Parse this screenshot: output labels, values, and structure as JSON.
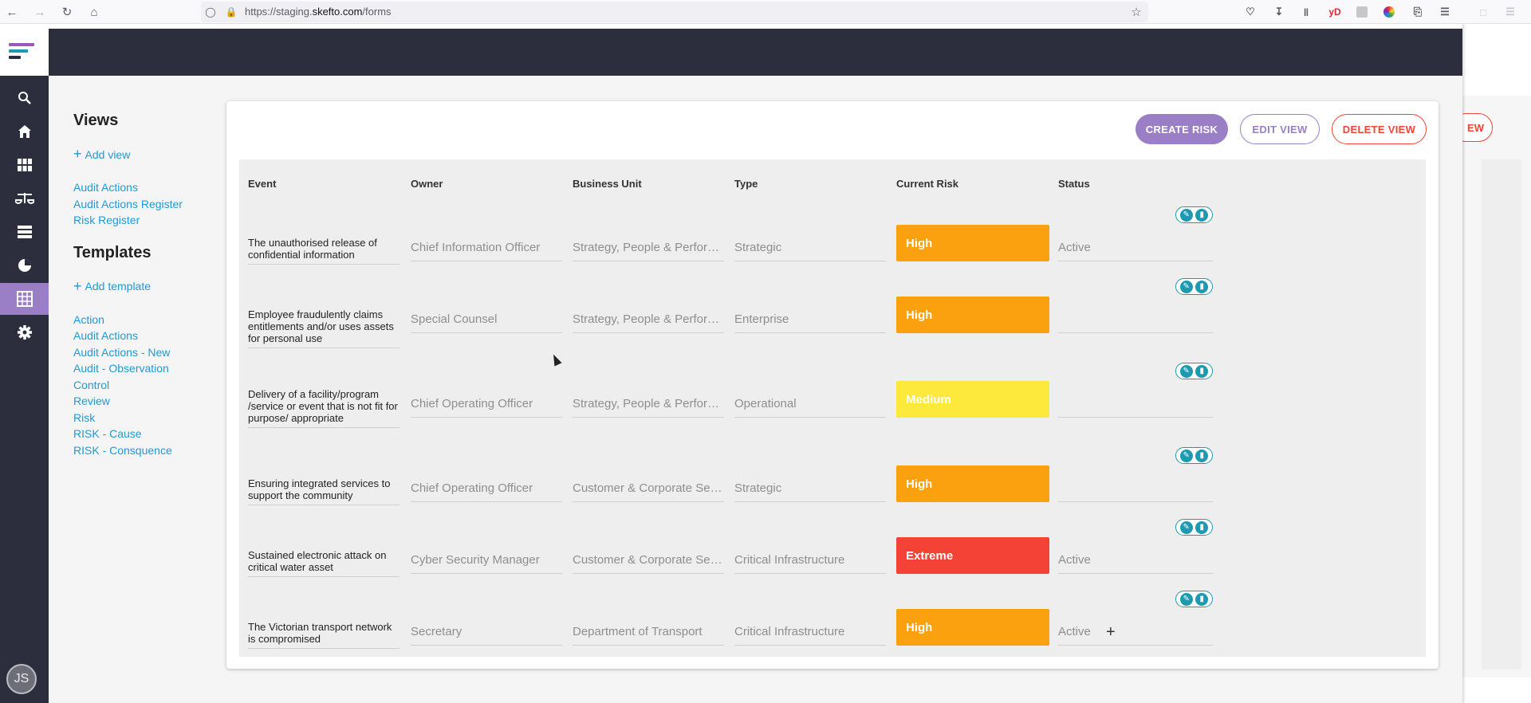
{
  "browser": {
    "url_prefix": "https://staging.",
    "url_host": "skefto.com",
    "url_path": "/forms",
    "ext_yd": "yD"
  },
  "colors": {
    "sidebar_bg": "#2d2e3d",
    "accent_purple": "#9b7fc6",
    "link_blue": "#1e9ad6",
    "danger_red": "#f44336",
    "risk_high": "#fba00e",
    "risk_medium": "#fde93b",
    "risk_extreme": "#f44336"
  },
  "user": {
    "initials": "JS"
  },
  "views": {
    "heading": "Views",
    "add_label": "Add view",
    "items": [
      "Audit Actions",
      "Audit Actions Register",
      "Risk Register"
    ]
  },
  "templates": {
    "heading": "Templates",
    "add_label": "Add template",
    "items": [
      "Action",
      "Audit Actions",
      "Audit Actions - New",
      "Audit - Observation",
      "Control",
      "Review",
      "Risk",
      "RISK - Cause",
      "RISK - Consquence"
    ]
  },
  "toolbar": {
    "create_label": "CREATE RISK",
    "edit_label": "EDIT VIEW",
    "delete_label": "DELETE VIEW",
    "background_btn_label": "EW"
  },
  "table": {
    "headers": {
      "event": "Event",
      "owner": "Owner",
      "business_unit": "Business Unit",
      "type": "Type",
      "current_risk": "Current Risk",
      "status": "Status"
    },
    "rows": [
      {
        "event": "The unauthorised release of confidential information",
        "owner": "Chief Information Officer",
        "business_unit": "Strategy, People & Performance",
        "type": "Strategic",
        "risk": "High",
        "risk_color": "#fba00e",
        "status": "Active"
      },
      {
        "event": "Employee fraudulently claims entitlements and/or uses assets for personal use",
        "owner": "Special Counsel",
        "business_unit": "Strategy, People & Performance",
        "type": "Enterprise",
        "risk": "High",
        "risk_color": "#fba00e",
        "status": ""
      },
      {
        "event": "Delivery of a facility/program /service or event that is not fit for purpose/ appropriate",
        "owner": "Chief Operating Officer",
        "business_unit": "Strategy, People & Performance",
        "type": "Operational",
        "risk": "Medium",
        "risk_color": "#fde93b",
        "status": ""
      },
      {
        "event": "Ensuring integrated services to support the community",
        "owner": "Chief Operating Officer",
        "business_unit": "Customer & Corporate Services",
        "type": "Strategic",
        "risk": "High",
        "risk_color": "#fba00e",
        "status": ""
      },
      {
        "event": "Sustained electronic attack on critical water asset",
        "owner": "Cyber Security Manager",
        "business_unit": "Customer & Corporate Services",
        "type": "Critical Infrastructure",
        "risk": "Extreme",
        "risk_color": "#f44336",
        "status": "Active"
      },
      {
        "event": "The Victorian transport network is compromised",
        "owner": "Secretary",
        "business_unit": "Department of Transport",
        "type": "Critical Infrastructure",
        "risk": "High",
        "risk_color": "#fba00e",
        "status": "Active"
      }
    ]
  }
}
